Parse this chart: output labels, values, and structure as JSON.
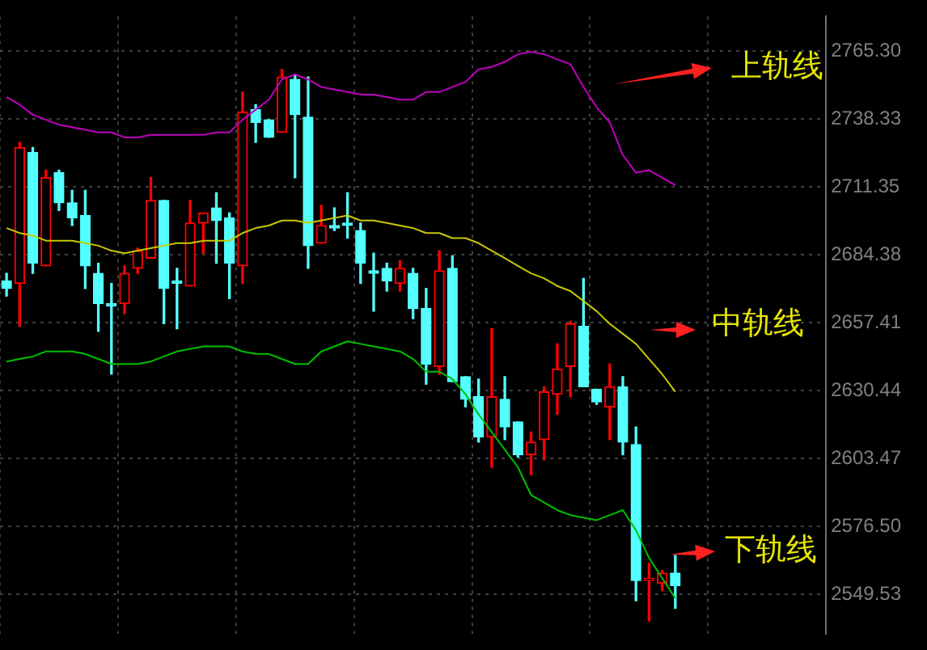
{
  "chart_data": {
    "type": "candlestick",
    "categories": [
      null,
      null,
      null,
      null,
      null,
      null,
      null,
      null,
      null,
      null,
      null,
      null,
      null,
      null,
      null,
      null,
      null,
      null,
      null,
      null,
      null,
      null,
      null,
      null,
      null,
      null,
      null,
      null,
      null,
      null,
      null,
      null,
      null,
      null,
      null,
      null,
      null,
      null,
      null,
      null,
      null,
      null,
      null,
      null,
      null,
      null,
      null,
      null,
      null,
      null,
      null,
      null,
      null,
      null,
      null,
      null,
      null,
      null,
      null,
      null,
      null,
      null,
      null
    ],
    "ohlc": [
      [
        2674,
        2677,
        2668,
        2671
      ],
      [
        2673,
        2729,
        2656,
        2727
      ],
      [
        2725,
        2727,
        2677,
        2681
      ],
      [
        2680,
        2718,
        2680,
        2715
      ],
      [
        2717,
        2718,
        2702,
        2705
      ],
      [
        2705,
        2710,
        2696,
        2699
      ],
      [
        2700,
        2710,
        2671,
        2680
      ],
      [
        2677,
        2681,
        2654,
        2665
      ],
      [
        2665,
        2673,
        2637,
        2664
      ],
      [
        2665,
        2680,
        2661,
        2677
      ],
      [
        2679,
        2687,
        2677,
        2686
      ],
      [
        2683,
        2715,
        2683,
        2706
      ],
      [
        2706,
        2706,
        2657,
        2671
      ],
      [
        2674,
        2679,
        2655,
        2673
      ],
      [
        2672,
        2706,
        2672,
        2697
      ],
      [
        2697,
        2701,
        2685,
        2701
      ],
      [
        2703,
        2709,
        2681,
        2698
      ],
      [
        2699,
        2701,
        2667,
        2681
      ],
      [
        2680,
        2749,
        2673,
        2741
      ],
      [
        2742,
        2744,
        2729,
        2737
      ],
      [
        2738,
        2738,
        2731,
        2731
      ],
      [
        2733,
        2758,
        2733,
        2755
      ],
      [
        2754,
        2756,
        2715,
        2740
      ],
      [
        2739,
        2755,
        2679,
        2688
      ],
      [
        2689,
        2704,
        2689,
        2696
      ],
      [
        2696,
        2703,
        2694,
        2695
      ],
      [
        2697,
        2709,
        2691,
        2696
      ],
      [
        2694,
        2697,
        2673,
        2681
      ],
      [
        2678,
        2685,
        2662,
        2677
      ],
      [
        2679,
        2681,
        2670,
        2674
      ],
      [
        2673,
        2682,
        2670,
        2679
      ],
      [
        2677,
        2679,
        2659,
        2663
      ],
      [
        2663,
        2671,
        2633,
        2641
      ],
      [
        2640,
        2686,
        2637,
        2678
      ],
      [
        2679,
        2684,
        2634,
        2634
      ],
      [
        2636,
        2636,
        2624,
        2627
      ],
      [
        2628,
        2635,
        2610,
        2612
      ],
      [
        2612,
        2655,
        2600,
        2628
      ],
      [
        2627,
        2636,
        2611,
        2616
      ],
      [
        2618,
        2618,
        2604,
        2605
      ],
      [
        2605,
        2614,
        2597,
        2610
      ],
      [
        2611,
        2632,
        2603,
        2630
      ],
      [
        2629,
        2649,
        2621,
        2639
      ],
      [
        2640,
        2658,
        2628,
        2657
      ],
      [
        2656,
        2675,
        2632,
        2632
      ],
      [
        2631,
        2631,
        2625,
        2626
      ],
      [
        2624,
        2641,
        2611,
        2632
      ],
      [
        2632,
        2636,
        2605,
        2610
      ],
      [
        2609,
        2616,
        2547,
        2555
      ],
      [
        2555,
        2562,
        2539,
        2556
      ],
      [
        2554,
        2559,
        2551,
        2558
      ],
      [
        2558,
        2565,
        2544,
        2553
      ],
      null,
      null,
      null,
      null,
      null,
      null,
      null,
      null,
      null,
      null,
      null
    ],
    "colors": [
      "#54ffff",
      "#ff0000",
      "#54ffff",
      "#ff0000",
      "#54ffff",
      "#54ffff",
      "#54ffff",
      "#54ffff",
      "#54ffff",
      "#ff0000",
      "#ff0000",
      "#ff0000",
      "#54ffff",
      "#54ffff",
      "#ff0000",
      "#ff0000",
      "#54ffff",
      "#54ffff",
      "#ff0000",
      "#54ffff",
      "#54ffff",
      "#ff0000",
      "#54ffff",
      "#54ffff",
      "#ff0000",
      "#54ffff",
      "#54ffff",
      "#54ffff",
      "#54ffff",
      "#54ffff",
      "#ff0000",
      "#54ffff",
      "#54ffff",
      "#ff0000",
      "#54ffff",
      "#54ffff",
      "#54ffff",
      "#ff0000",
      "#54ffff",
      "#54ffff",
      "#ff0000",
      "#ff0000",
      "#ff0000",
      "#ff0000",
      "#54ffff",
      "#54ffff",
      "#ff0000",
      "#54ffff",
      "#54ffff",
      "#ff0000",
      "#ff0000",
      "#54ffff",
      null,
      null,
      null,
      null,
      null,
      null,
      null,
      null,
      null,
      null,
      null
    ],
    "series": [
      {
        "type": "line",
        "color": "#c000c0",
        "values": [
          2747,
          2744,
          2740,
          2738,
          2736,
          2735,
          2734,
          2733,
          2733,
          2731,
          2731,
          2732,
          2732,
          2732,
          2732,
          2732,
          2733,
          2733,
          2738,
          2742,
          2746,
          2754,
          2756,
          2754,
          2751,
          2750,
          2749,
          2748,
          2748,
          2747,
          2746,
          2746,
          2749,
          2749,
          2751,
          2753,
          2758,
          2759,
          2761,
          2764,
          2765,
          2764,
          2762,
          2760,
          2751,
          2743,
          2737,
          2724,
          2717,
          2718,
          2715,
          2712,
          null,
          null,
          null,
          null,
          null,
          null,
          null,
          null,
          null,
          null,
          null
        ]
      },
      {
        "type": "line",
        "color": "#c8c800",
        "values": [
          2695,
          2693,
          2692,
          2690,
          2690,
          2690,
          2689,
          2688,
          2686,
          2685,
          2686,
          2687,
          2688,
          2689,
          2689,
          2690,
          2690,
          2690,
          2693,
          2695,
          2696,
          2698,
          2698,
          2697,
          2698,
          2699,
          2700,
          2698,
          2698,
          2697,
          2696,
          2695,
          2693,
          2693,
          2691,
          2691,
          2689,
          2686,
          2683,
          2680,
          2677,
          2675,
          2672,
          2670,
          2666,
          2662,
          2657,
          2653,
          2649,
          2643,
          2637,
          2630,
          null,
          null,
          null,
          null,
          null,
          null,
          null,
          null,
          null,
          null,
          null
        ]
      },
      {
        "type": "line",
        "color": "#00c000",
        "values": [
          2642,
          2643,
          2644,
          2646,
          2646,
          2646,
          2645,
          2643,
          2641,
          2641,
          2641,
          2642,
          2644,
          2646,
          2647,
          2648,
          2648,
          2648,
          2646,
          2645,
          2645,
          2643,
          2641,
          2641,
          2646,
          2648,
          2650,
          2649,
          2648,
          2647,
          2646,
          2643,
          2638,
          2638,
          2635,
          2629,
          2621,
          2614,
          2607,
          2600,
          2589,
          2586,
          2583,
          2581,
          2580,
          2579,
          2581,
          2583,
          2575,
          2564,
          2556,
          2548,
          null,
          null,
          null,
          null,
          null,
          null,
          null,
          null,
          null,
          null,
          null
        ]
      }
    ],
    "ylim": [
      2534,
      2779
    ],
    "yticks": [
      {
        "value": 2765.3,
        "label": "2765.30"
      },
      {
        "value": 2738.33,
        "label": "2738.33"
      },
      {
        "value": 2711.35,
        "label": "2711.35"
      },
      {
        "value": 2684.38,
        "label": "2684.38"
      },
      {
        "value": 2657.41,
        "label": "2657.41"
      },
      {
        "value": 2630.44,
        "label": "2630.44"
      },
      {
        "value": 2603.47,
        "label": "2603.47"
      },
      {
        "value": 2576.5,
        "label": "2576.50"
      },
      {
        "value": 2549.53,
        "label": "2549.53"
      }
    ],
    "grid": true,
    "tick_labels": "y",
    "annotations": [
      "上轨线",
      "中轨线",
      "下轨线"
    ]
  }
}
